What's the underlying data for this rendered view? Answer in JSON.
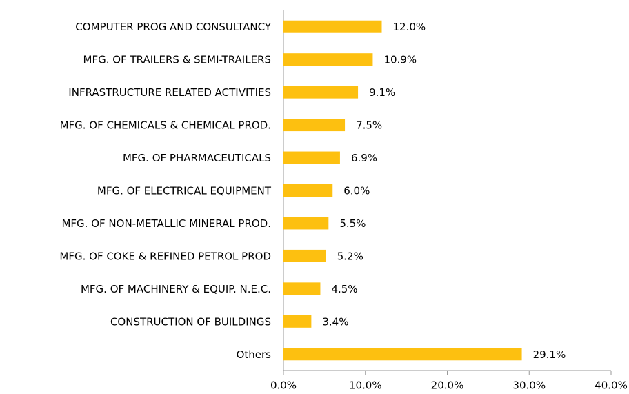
{
  "chart_data": {
    "type": "hbar",
    "categories": [
      "COMPUTER PROG AND CONSULTANCY",
      "MFG. OF TRAILERS & SEMI-TRAILERS",
      "INFRASTRUCTURE RELATED ACTIVITIES",
      "MFG. OF CHEMICALS & CHEMICAL PROD.",
      "MFG. OF PHARMACEUTICALS",
      "MFG. OF ELECTRICAL EQUIPMENT",
      "MFG. OF NON-METALLIC MINERAL PROD.",
      "MFG. OF COKE & REFINED PETROL PROD",
      "MFG. OF MACHINERY & EQUIP. N.E.C.",
      "CONSTRUCTION OF BUILDINGS",
      "Others"
    ],
    "values": [
      12.0,
      10.9,
      9.1,
      7.5,
      6.9,
      6.0,
      5.5,
      5.2,
      4.5,
      3.4,
      29.1
    ],
    "value_labels": [
      "12.0%",
      "10.9%",
      "9.1%",
      "7.5%",
      "6.9%",
      "6.0%",
      "5.5%",
      "5.2%",
      "4.5%",
      "3.4%",
      "29.1%"
    ],
    "color": "#fdc010",
    "xlim": [
      0,
      40
    ],
    "xticks": [
      {
        "value": 0,
        "label": "0.0%"
      },
      {
        "value": 10,
        "label": "10.0%"
      },
      {
        "value": 20,
        "label": "20.0%"
      },
      {
        "value": 30,
        "label": "30.0%"
      },
      {
        "value": 40,
        "label": "40.0%"
      }
    ],
    "grid": false
  }
}
